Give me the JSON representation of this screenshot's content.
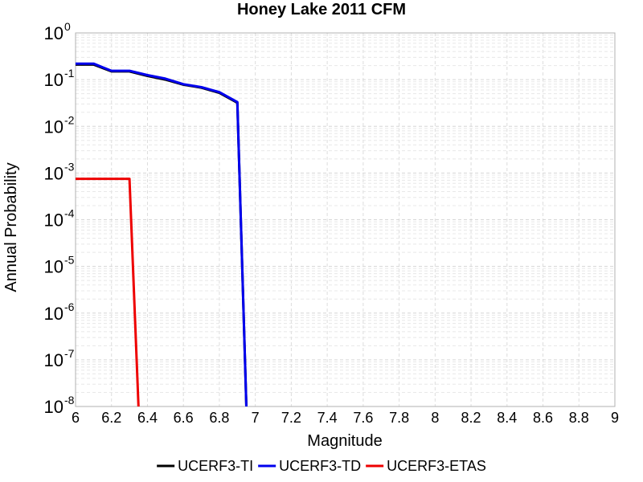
{
  "chart_data": {
    "type": "line",
    "title": "Honey Lake 2011 CFM",
    "xlabel": "Magnitude",
    "ylabel": "Annual Probability",
    "xlim": [
      6,
      9
    ],
    "ylim": [
      1e-08,
      1
    ],
    "yscale": "log",
    "xticks": [
      "6",
      "6.2",
      "6.4",
      "6.6",
      "6.8",
      "7",
      "7.2",
      "7.4",
      "7.6",
      "7.8",
      "8",
      "8.2",
      "8.4",
      "8.6",
      "8.8",
      "9"
    ],
    "ytick_exponents": [
      "0",
      "-1",
      "-2",
      "-3",
      "-4",
      "-5",
      "-6",
      "-7",
      "-8"
    ],
    "ytick_base": "10",
    "grid": true,
    "legend_position": "bottom",
    "series": [
      {
        "name": "UCERF3-TI",
        "color": "#000000",
        "x": [
          6.0,
          6.1,
          6.2,
          6.3,
          6.4,
          6.5,
          6.6,
          6.7,
          6.8,
          6.9,
          6.95
        ],
        "y": [
          0.21,
          0.21,
          0.15,
          0.15,
          0.12,
          0.1,
          0.078,
          0.067,
          0.052,
          0.032,
          1e-08
        ]
      },
      {
        "name": "UCERF3-TD",
        "color": "#0000ee",
        "x": [
          6.0,
          6.1,
          6.2,
          6.3,
          6.4,
          6.5,
          6.6,
          6.7,
          6.8,
          6.9,
          6.95
        ],
        "y": [
          0.22,
          0.22,
          0.155,
          0.155,
          0.125,
          0.105,
          0.08,
          0.069,
          0.054,
          0.033,
          1e-08
        ]
      },
      {
        "name": "UCERF3-ETAS",
        "color": "#ee0000",
        "x": [
          6.0,
          6.1,
          6.2,
          6.3,
          6.35
        ],
        "y": [
          0.00075,
          0.00075,
          0.00075,
          0.00075,
          1e-08
        ]
      }
    ]
  }
}
